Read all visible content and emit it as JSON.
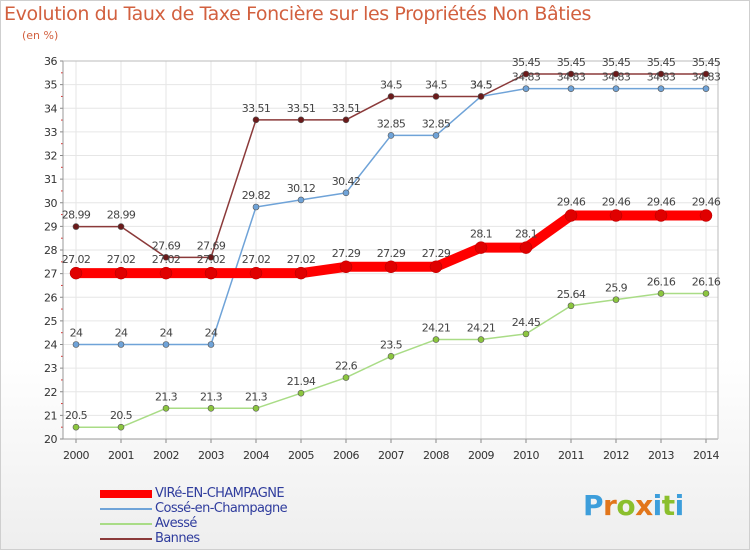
{
  "title": "Evolution du Taux de Taxe Foncière sur les Propriétés Non Bâties",
  "unit": "(en %)",
  "brand": {
    "name": "Proxiti",
    "letters": [
      "P",
      "r",
      "o",
      "x",
      "i",
      "t",
      "i"
    ],
    "colors": [
      "#3d9edb",
      "#e2761b",
      "#8bbf2d",
      "#e2761b",
      "#3d9edb",
      "#8bbf2d",
      "#3d9edb"
    ]
  },
  "chart_data": {
    "type": "line",
    "title": "Evolution du Taux de Taxe Foncière sur les Propriétés Non Bâties",
    "ylabel": "(en %)",
    "xlabel": "",
    "x": [
      "2000",
      "2001",
      "2002",
      "2003",
      "2004",
      "2005",
      "2006",
      "2007",
      "2008",
      "2009",
      "2010",
      "2011",
      "2012",
      "2013",
      "2014"
    ],
    "ylim": [
      20,
      36
    ],
    "yticks": [
      "20",
      "21",
      "22",
      "23",
      "24",
      "25",
      "26",
      "27",
      "28",
      "29",
      "30",
      "31",
      "32",
      "33",
      "34",
      "35",
      "36"
    ],
    "grid": true,
    "legend_position": "bottom-left",
    "series": [
      {
        "name": "VIRé-EN-CHAMPAGNE",
        "color": "#ff0000",
        "marker": "#e00000",
        "highlight": true,
        "values": [
          27.02,
          27.02,
          27.02,
          27.02,
          27.02,
          27.02,
          27.29,
          27.29,
          27.29,
          28.1,
          28.1,
          29.46,
          29.46,
          29.46,
          29.46
        ],
        "labels": [
          "27.02",
          "27.02",
          "27.02",
          "27.02",
          "27.02",
          "27.02",
          "27.29",
          "27.29",
          "27.29",
          "28.1",
          "28.1",
          "29.46",
          "29.46",
          "29.46",
          "29.46"
        ]
      },
      {
        "name": "Cossé-en-Champagne",
        "color": "#6fa3d8",
        "marker": "#6fa3d8",
        "highlight": false,
        "values": [
          24,
          24,
          24,
          24,
          29.82,
          30.12,
          30.42,
          32.85,
          32.85,
          34.5,
          34.83,
          34.83,
          34.83,
          34.83,
          34.83
        ],
        "labels": [
          "24",
          "24",
          "24",
          "24",
          "29.82",
          "30.12",
          "30.42",
          "32.85",
          "32.85",
          "34.5",
          "34.83",
          "34.83",
          "34.83",
          "34.83",
          "34.83"
        ]
      },
      {
        "name": "Avessé",
        "color": "#a9dc86",
        "marker": "#8cc63f",
        "highlight": false,
        "values": [
          20.5,
          20.5,
          21.3,
          21.3,
          21.3,
          21.94,
          22.6,
          23.5,
          24.21,
          24.21,
          24.45,
          25.64,
          25.9,
          26.16,
          26.16
        ],
        "labels": [
          "20.5",
          "20.5",
          "21.3",
          "21.3",
          "21.3",
          "21.94",
          "22.6",
          "23.5",
          "24.21",
          "24.21",
          "24.45",
          "25.64",
          "25.9",
          "26.16",
          "26.16"
        ]
      },
      {
        "name": "Bannes",
        "color": "#8b3a3a",
        "marker": "#6b1a1a",
        "highlight": false,
        "values": [
          28.99,
          28.99,
          27.69,
          27.69,
          33.51,
          33.51,
          33.51,
          34.5,
          34.5,
          34.5,
          35.45,
          35.45,
          35.45,
          35.45,
          35.45
        ],
        "labels": [
          "28.99",
          "28.99",
          "27.69",
          "27.69",
          "33.51",
          "33.51",
          "33.51",
          "34.5",
          "34.5",
          "34.5",
          "35.45",
          "35.45",
          "35.45",
          "35.45",
          "35.45"
        ]
      }
    ]
  }
}
